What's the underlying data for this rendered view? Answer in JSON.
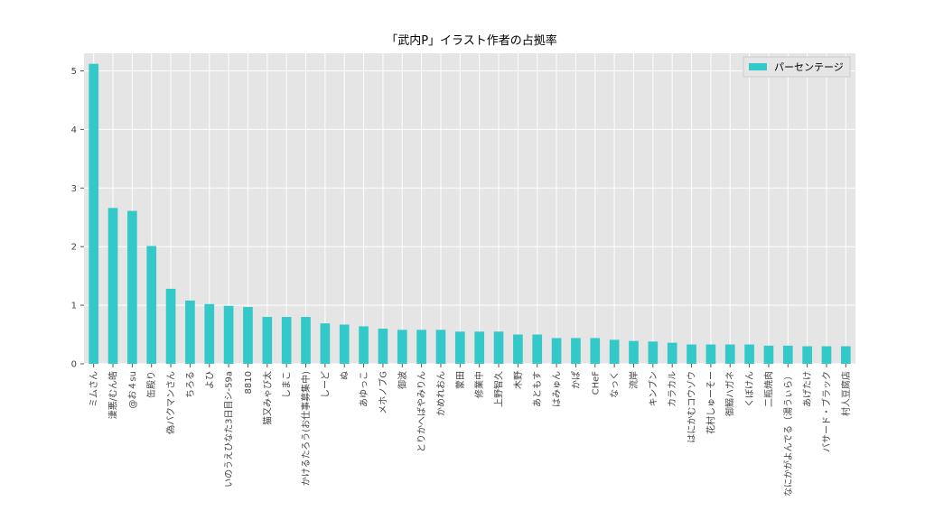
{
  "chart_data": {
    "type": "bar",
    "title": "「武内P」イラスト作者の占拠率",
    "xlabel": "",
    "ylabel": "",
    "legend_position": "top-right",
    "grid": true,
    "bar_color": "#33c9c9",
    "background_color": "#e5e5e5",
    "ylim": [
      0,
      5.3
    ],
    "yticks": [
      0,
      1,
      2,
      3,
      4,
      5
    ],
    "categories": [
      "ミムさん",
      "淒悪/むん皓",
      "@お４su",
      "缶殿り",
      "偽バクマンさん",
      "ちろる",
      "よひ",
      "いのうえひなた3日目シ-59a",
      "8810",
      "猫又みゃび太",
      "しまこ",
      "かけるたろう(お仕事募集中)",
      "しーど",
      "ぬ",
      "あゆっこ",
      "メホノブG",
      "御波",
      "とりかへばやみりん",
      "かめれおん",
      "蒙田",
      "修業中",
      "上野智久",
      "木野",
      "あともす",
      "はみゅん",
      "かぱ",
      "CHeF",
      "なっく",
      "流岸",
      "キンブン",
      "カラカル",
      "はにかむコウゾウ",
      "花村しゅーそー",
      "御鰯ハガネ",
      "くぼけん",
      "二瓶焼肉",
      "なにかがよんでる（湯うぃら）",
      "あげたけ",
      "バサード・ブラック",
      "村人豆腐店"
    ],
    "series": [
      {
        "name": "パーセンテージ",
        "values": [
          5.12,
          2.66,
          2.61,
          2.01,
          1.28,
          1.08,
          1.02,
          0.99,
          0.97,
          0.8,
          0.8,
          0.8,
          0.69,
          0.67,
          0.64,
          0.6,
          0.58,
          0.58,
          0.58,
          0.55,
          0.55,
          0.55,
          0.5,
          0.5,
          0.44,
          0.44,
          0.44,
          0.41,
          0.39,
          0.38,
          0.36,
          0.33,
          0.33,
          0.33,
          0.33,
          0.31,
          0.31,
          0.3,
          0.3,
          0.3
        ]
      }
    ]
  }
}
